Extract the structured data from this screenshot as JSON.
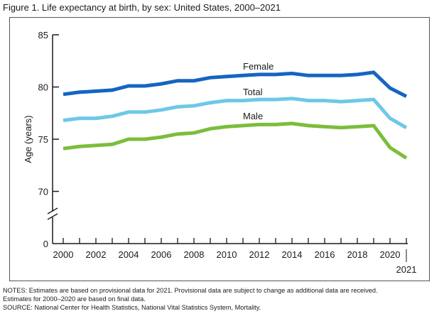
{
  "figure": {
    "title": "Figure 1. Life expectancy at birth, by sex: United States, 2000–2021"
  },
  "notes": {
    "line1": "NOTES: Estimates are based on provisional data for 2021. Provisional data are subject to change as additional data are received.",
    "line2": "Estimates for 2000–2020 are based on final data.",
    "line3": "SOURCE: National Center for Health Statistics, National Vital Statistics System, Mortality."
  },
  "chart_data": {
    "type": "line",
    "title": "Life expectancy at birth, by sex: United States, 2000–2021",
    "xlabel": "",
    "ylabel": "Age (years)",
    "x": [
      2000,
      2001,
      2002,
      2003,
      2004,
      2005,
      2006,
      2007,
      2008,
      2009,
      2010,
      2011,
      2012,
      2013,
      2014,
      2015,
      2016,
      2017,
      2018,
      2019,
      2020,
      2021
    ],
    "x_tick_labels": [
      "2000",
      "2002",
      "2004",
      "2006",
      "2008",
      "2010",
      "2012",
      "2014",
      "2016",
      "2018",
      "2020"
    ],
    "x_tick_extra_label": "2021",
    "y_tick_labels": [
      "85",
      "80",
      "75",
      "70",
      "0"
    ],
    "ylim": [
      68,
      85
    ],
    "y_axis_break": true,
    "grid": false,
    "legend": "inline-labels",
    "series": [
      {
        "name": "Female",
        "color": "#1565c0",
        "values": [
          79.3,
          79.5,
          79.6,
          79.7,
          80.1,
          80.1,
          80.3,
          80.6,
          80.6,
          80.9,
          81.0,
          81.1,
          81.2,
          81.2,
          81.3,
          81.1,
          81.1,
          81.1,
          81.2,
          81.4,
          79.9,
          79.1
        ]
      },
      {
        "name": "Total",
        "color": "#6ec8e6",
        "values": [
          76.8,
          77.0,
          77.0,
          77.2,
          77.6,
          77.6,
          77.8,
          78.1,
          78.2,
          78.5,
          78.7,
          78.7,
          78.8,
          78.8,
          78.9,
          78.7,
          78.7,
          78.6,
          78.7,
          78.8,
          77.0,
          76.1
        ]
      },
      {
        "name": "Male",
        "color": "#7cbd3c",
        "values": [
          74.1,
          74.3,
          74.4,
          74.5,
          75.0,
          75.0,
          75.2,
          75.5,
          75.6,
          76.0,
          76.2,
          76.3,
          76.4,
          76.4,
          76.5,
          76.3,
          76.2,
          76.1,
          76.2,
          76.3,
          74.2,
          73.2
        ]
      }
    ]
  }
}
